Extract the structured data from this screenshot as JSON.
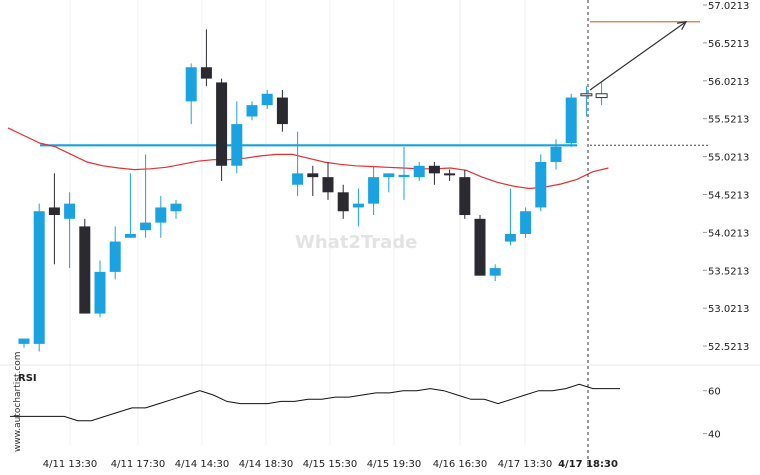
{
  "chart_data": {
    "type": "candlestick",
    "y_ticks": [
      "57.0213",
      "56.5213",
      "56.0213",
      "55.5213",
      "55.0213",
      "54.5213",
      "54.0213",
      "53.5213",
      "53.0213",
      "52.5213"
    ],
    "ylim": [
      52.2713,
      57.0213
    ],
    "x_ticks": [
      "4/11 13:30",
      "4/11 17:30",
      "4/14 14:30",
      "4/14 18:30",
      "4/15 15:30",
      "4/15 19:30",
      "4/16 16:30",
      "4/17 13:30",
      "4/17 18:30"
    ],
    "highlight_x_tick": "4/17 18:30",
    "candles": [
      {
        "o": 52.55,
        "h": 52.62,
        "l": 52.5,
        "c": 52.62
      },
      {
        "o": 52.55,
        "h": 54.4,
        "l": 52.45,
        "c": 54.3
      },
      {
        "o": 54.35,
        "h": 54.8,
        "l": 53.6,
        "c": 54.25
      },
      {
        "o": 54.2,
        "h": 54.55,
        "l": 53.55,
        "c": 54.4
      },
      {
        "o": 54.1,
        "h": 54.2,
        "l": 52.95,
        "c": 52.95
      },
      {
        "o": 52.95,
        "h": 53.65,
        "l": 52.9,
        "c": 53.5
      },
      {
        "o": 53.5,
        "h": 54.1,
        "l": 53.4,
        "c": 53.9
      },
      {
        "o": 53.95,
        "h": 54.8,
        "l": 53.95,
        "c": 54.0
      },
      {
        "o": 54.05,
        "h": 55.05,
        "l": 53.95,
        "c": 54.15
      },
      {
        "o": 54.15,
        "h": 54.5,
        "l": 53.95,
        "c": 54.35
      },
      {
        "o": 54.3,
        "h": 54.45,
        "l": 54.2,
        "c": 54.4
      },
      {
        "o": 55.75,
        "h": 56.25,
        "l": 55.45,
        "c": 56.2
      },
      {
        "o": 56.2,
        "h": 56.7,
        "l": 55.95,
        "c": 56.05
      },
      {
        "o": 56.0,
        "h": 56.05,
        "l": 54.7,
        "c": 54.9
      },
      {
        "o": 54.9,
        "h": 55.75,
        "l": 54.8,
        "c": 55.45
      },
      {
        "o": 55.55,
        "h": 55.75,
        "l": 55.5,
        "c": 55.7
      },
      {
        "o": 55.7,
        "h": 55.9,
        "l": 55.65,
        "c": 55.85
      },
      {
        "o": 55.8,
        "h": 55.9,
        "l": 55.35,
        "c": 55.45
      },
      {
        "o": 54.65,
        "h": 55.35,
        "l": 54.5,
        "c": 54.8
      },
      {
        "o": 54.8,
        "h": 54.9,
        "l": 54.5,
        "c": 54.75
      },
      {
        "o": 54.75,
        "h": 54.95,
        "l": 54.45,
        "c": 54.55
      },
      {
        "o": 54.55,
        "h": 54.65,
        "l": 54.2,
        "c": 54.3
      },
      {
        "o": 54.35,
        "h": 54.6,
        "l": 54.1,
        "c": 54.4
      },
      {
        "o": 54.4,
        "h": 54.9,
        "l": 54.25,
        "c": 54.75
      },
      {
        "o": 54.75,
        "h": 54.8,
        "l": 54.55,
        "c": 54.8
      },
      {
        "o": 54.75,
        "h": 55.15,
        "l": 54.45,
        "c": 54.78
      },
      {
        "o": 54.75,
        "h": 54.95,
        "l": 54.7,
        "c": 54.9
      },
      {
        "o": 54.9,
        "h": 54.95,
        "l": 54.65,
        "c": 54.8
      },
      {
        "o": 54.8,
        "h": 54.85,
        "l": 54.7,
        "c": 54.78
      },
      {
        "o": 54.75,
        "h": 54.85,
        "l": 54.2,
        "c": 54.25
      },
      {
        "o": 54.2,
        "h": 54.25,
        "l": 53.45,
        "c": 53.45
      },
      {
        "o": 53.45,
        "h": 53.6,
        "l": 53.38,
        "c": 53.55
      },
      {
        "o": 53.9,
        "h": 54.6,
        "l": 53.85,
        "c": 54.0
      },
      {
        "o": 54.0,
        "h": 54.35,
        "l": 53.95,
        "c": 54.3
      },
      {
        "o": 54.35,
        "h": 55.05,
        "l": 54.3,
        "c": 54.95
      },
      {
        "o": 54.95,
        "h": 55.25,
        "l": 54.85,
        "c": 55.15
      },
      {
        "o": 55.2,
        "h": 55.85,
        "l": 55.15,
        "c": 55.8
      },
      {
        "o": 55.85,
        "h": 55.95,
        "l": 55.55,
        "c": 55.85
      },
      {
        "o": 55.8,
        "h": 56.0,
        "l": 55.7,
        "c": 55.85
      }
    ],
    "moving_average": [
      55.4,
      55.3,
      55.2,
      55.15,
      55.05,
      54.95,
      54.9,
      54.87,
      54.85,
      54.86,
      54.88,
      54.92,
      54.96,
      54.98,
      54.98,
      55.0,
      55.03,
      55.05,
      55.05,
      55.0,
      54.95,
      54.92,
      54.9,
      54.89,
      54.88,
      54.87,
      54.86,
      54.86,
      54.87,
      54.84,
      54.75,
      54.68,
      54.63,
      54.6,
      54.62,
      54.66,
      54.72,
      54.82,
      54.87
    ],
    "support_level": 55.17,
    "target_level": 56.8,
    "current_level": 55.17,
    "projection": {
      "from": 55.9,
      "to": 56.8
    },
    "colors": {
      "bull": "#1aa3e0",
      "bear": "#2a2a30",
      "support": "#16a3dd",
      "target": "#d9773b",
      "ma": "#e3312f",
      "rsi": "#111111",
      "projection": "#333333"
    },
    "rsi": {
      "label": "RSI",
      "ticks": [
        "60",
        "40"
      ],
      "ylim": [
        30,
        72
      ],
      "values": [
        48,
        48,
        48,
        48,
        48,
        46,
        46,
        48,
        50,
        52,
        52,
        54,
        56,
        58,
        60,
        58,
        55,
        54,
        54,
        54,
        55,
        55,
        56,
        56,
        57,
        57,
        58,
        59,
        59,
        60,
        60,
        61,
        60,
        58,
        56,
        56,
        54,
        56,
        58,
        60,
        60,
        61,
        63,
        61,
        61,
        61
      ]
    },
    "watermark": "What2Trade",
    "side_label": "www.autochartist.com"
  }
}
